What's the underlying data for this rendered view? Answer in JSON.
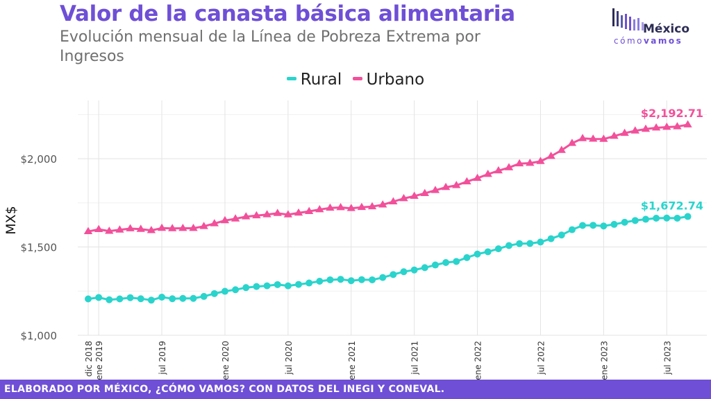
{
  "header": {
    "title": "Valor de la canasta básica alimentaria",
    "subtitle": "Evolución mensual de la Línea de Pobreza Extrema por Ingresos"
  },
  "logo": {
    "name": "México",
    "tagline_light": "cómo",
    "tagline_bold": "vamos"
  },
  "footer": {
    "text": "ELABORADO POR MÉXICO, ¿CÓMO VAMOS? CON DATOS DEL INEGI Y CONEVAL."
  },
  "colors": {
    "brand": "#6e4fd6",
    "rural": "#2ad4cc",
    "urbano": "#f2509a"
  },
  "chart_data": {
    "type": "line",
    "ylabel": "MX$",
    "xlabel": "",
    "ylim": [
      1000,
      2330
    ],
    "y_ticks": [
      1000,
      1500,
      2000
    ],
    "y_tick_labels": [
      "$1,000",
      "$1,500",
      "$2,000"
    ],
    "x_ticks": [
      {
        "month": 0,
        "label": "dic 2018"
      },
      {
        "month": 1,
        "label": "ene 2019"
      },
      {
        "month": 7,
        "label": "jul 2019"
      },
      {
        "month": 13,
        "label": "ene 2020"
      },
      {
        "month": 19,
        "label": "jul 2020"
      },
      {
        "month": 25,
        "label": "ene 2021"
      },
      {
        "month": 31,
        "label": "jul 2021"
      },
      {
        "month": 37,
        "label": "ene 2022"
      },
      {
        "month": 43,
        "label": "jul 2022"
      },
      {
        "month": 49,
        "label": "ene 2023"
      },
      {
        "month": 55,
        "label": "jul 2023"
      }
    ],
    "legend_position": "top",
    "grid": true,
    "series": [
      {
        "name": "Rural",
        "marker": "circle",
        "end_label": "$1,672.74",
        "values": [
          1206,
          1214,
          1201,
          1206,
          1213,
          1207,
          1199,
          1216,
          1207,
          1209,
          1209,
          1220,
          1236,
          1249,
          1258,
          1270,
          1276,
          1280,
          1287,
          1280,
          1288,
          1296,
          1306,
          1314,
          1317,
          1309,
          1315,
          1314,
          1327,
          1344,
          1360,
          1370,
          1383,
          1398,
          1412,
          1418,
          1440,
          1460,
          1473,
          1490,
          1508,
          1519,
          1520,
          1528,
          1547,
          1568,
          1598,
          1622,
          1623,
          1619,
          1628,
          1640,
          1650,
          1657,
          1663,
          1664,
          1663,
          1672.74
        ]
      },
      {
        "name": "Urbano",
        "marker": "triangle",
        "end_label": "$2,192.71",
        "values": [
          1588,
          1600,
          1590,
          1597,
          1604,
          1601,
          1594,
          1607,
          1605,
          1606,
          1606,
          1617,
          1633,
          1650,
          1660,
          1672,
          1678,
          1684,
          1691,
          1683,
          1693,
          1702,
          1712,
          1721,
          1724,
          1719,
          1725,
          1729,
          1739,
          1757,
          1775,
          1788,
          1804,
          1821,
          1838,
          1849,
          1870,
          1890,
          1912,
          1932,
          1950,
          1972,
          1975,
          1985,
          2014,
          2048,
          2088,
          2115,
          2112,
          2111,
          2128,
          2145,
          2158,
          2168,
          2175,
          2179,
          2182,
          2192.71
        ]
      }
    ]
  }
}
